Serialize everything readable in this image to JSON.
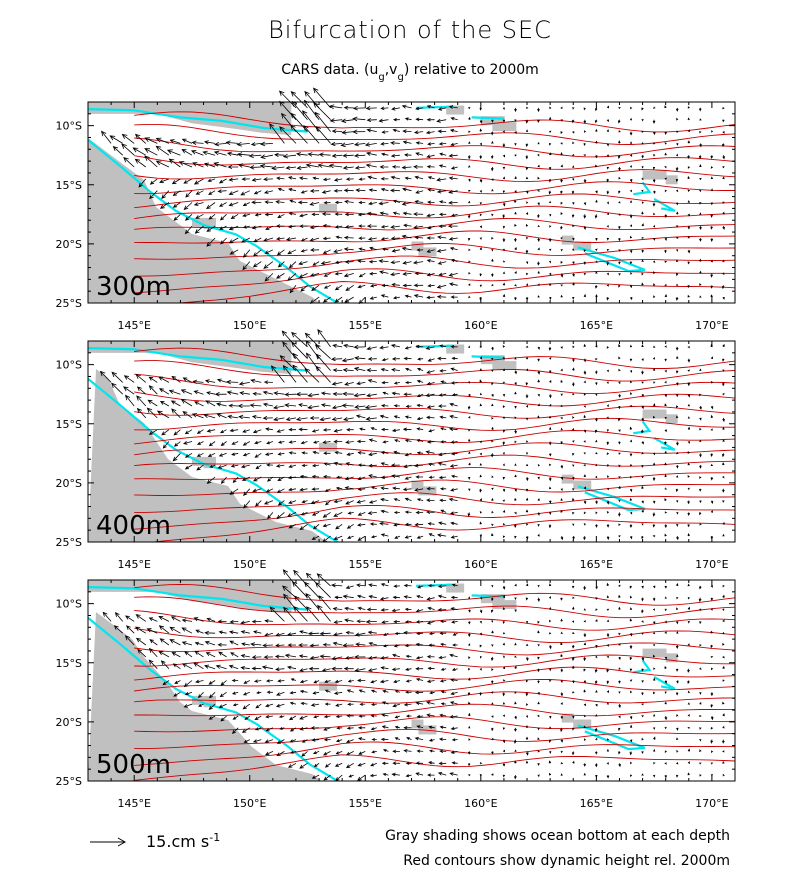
{
  "chart_data": {
    "type": "vector-field",
    "title": "Bifurcation of the SEC",
    "subtitle": {
      "before": "CARS data. (u",
      "sub1": "g",
      "mid": ",v",
      "sub2": "g",
      "after": ") relative to 2000m"
    },
    "x_ticks": [
      "145°E",
      "150°E",
      "155°E",
      "160°E",
      "165°E",
      "170°E"
    ],
    "x_tick_values": [
      145,
      150,
      155,
      160,
      165,
      170
    ],
    "y_ticks": [
      "10°S",
      "15°S",
      "20°S",
      "25°S"
    ],
    "y_tick_values": [
      -10,
      -15,
      -20,
      -25
    ],
    "xlim": [
      143,
      171
    ],
    "ylim": [
      -25,
      -8
    ],
    "panels": [
      {
        "depth_label": "300m",
        "current_strength": 1.0,
        "bifurcation_lat": -14.5
      },
      {
        "depth_label": "400m",
        "current_strength": 0.85,
        "bifurcation_lat": -15.5
      },
      {
        "depth_label": "500m",
        "current_strength": 0.75,
        "bifurcation_lat": -16.5
      }
    ],
    "reference_vector": {
      "value": 15,
      "label": "15.cm s",
      "exponent": "-1"
    },
    "notes": [
      "Gray shading shows ocean bottom at each depth",
      "Red contours show dynamic height rel. 2000m"
    ],
    "colors": {
      "land": "#c0c0c0",
      "contour": "#cc0000",
      "isobath": "#00e5ee",
      "vector": "#000000"
    }
  }
}
